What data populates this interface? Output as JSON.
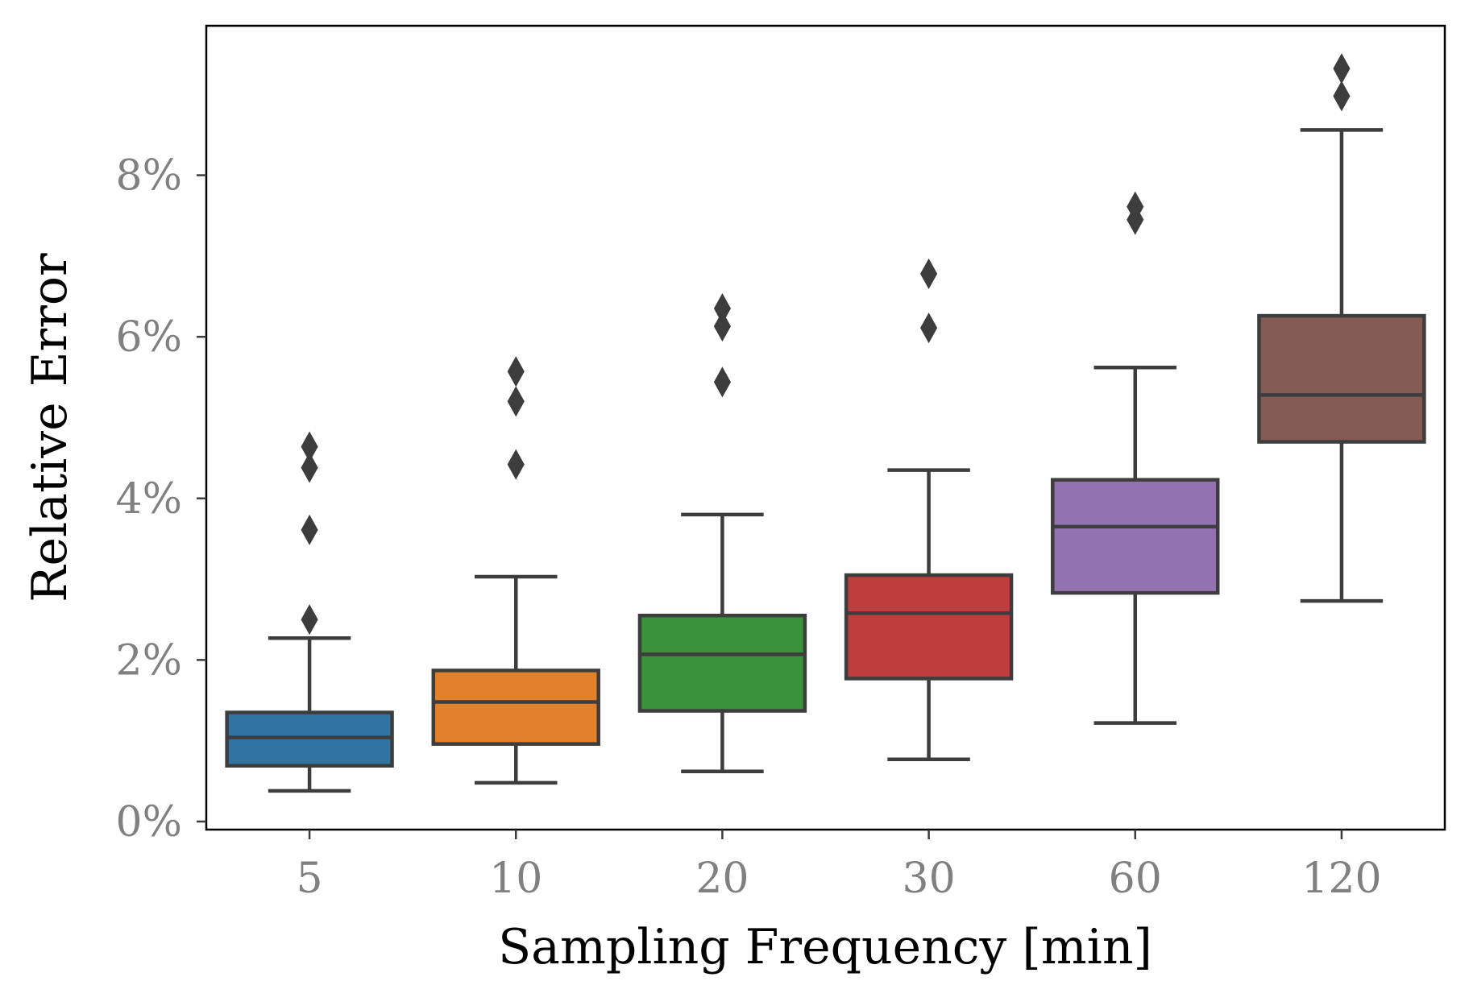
{
  "chart_data": {
    "type": "box",
    "title": "",
    "xlabel": "Sampling Frequency [min]",
    "ylabel": "Relative Error",
    "categories": [
      "5",
      "10",
      "20",
      "30",
      "60",
      "120"
    ],
    "ylim": [
      -0.001,
      0.0985
    ],
    "yticks": [
      0,
      0.02,
      0.04,
      0.06,
      0.08
    ],
    "ytick_labels": [
      "0%",
      "2%",
      "4%",
      "6%",
      "8%"
    ],
    "grid": false,
    "legend": "none",
    "colors": [
      "#3274a1",
      "#e1812c",
      "#3a923a",
      "#c03d3e",
      "#9372b2",
      "#845b53"
    ],
    "edge_color": "#3d3d3d",
    "boxes": [
      {
        "category": "5",
        "whislo": 0.0038,
        "q1": 0.0069,
        "median": 0.0104,
        "q3": 0.0135,
        "whishi": 0.0227,
        "fliers": [
          0.0464,
          0.0438,
          0.0361,
          0.025
        ]
      },
      {
        "category": "10",
        "whislo": 0.0048,
        "q1": 0.0096,
        "median": 0.0148,
        "q3": 0.0187,
        "whishi": 0.0303,
        "fliers": [
          0.0557,
          0.052,
          0.0442
        ]
      },
      {
        "category": "20",
        "whislo": 0.0062,
        "q1": 0.0137,
        "median": 0.0207,
        "q3": 0.0255,
        "whishi": 0.038,
        "fliers": [
          0.0635,
          0.0613,
          0.0544
        ]
      },
      {
        "category": "30",
        "whislo": 0.0077,
        "q1": 0.0177,
        "median": 0.0258,
        "q3": 0.0305,
        "whishi": 0.0435,
        "fliers": [
          0.0678,
          0.0611
        ]
      },
      {
        "category": "60",
        "whislo": 0.0122,
        "q1": 0.0283,
        "median": 0.0365,
        "q3": 0.0423,
        "whishi": 0.0562,
        "fliers": [
          0.0761,
          0.0745
        ]
      },
      {
        "category": "120",
        "whislo": 0.0273,
        "q1": 0.047,
        "median": 0.0528,
        "q3": 0.0626,
        "whishi": 0.0856,
        "fliers": [
          0.0932,
          0.0898
        ]
      }
    ]
  }
}
